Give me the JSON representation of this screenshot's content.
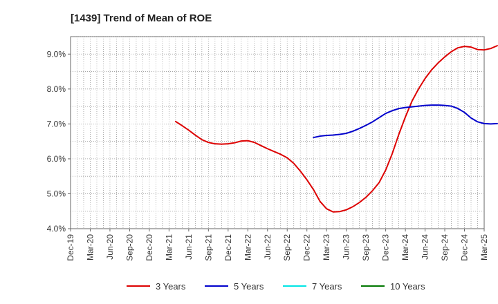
{
  "chart_data": {
    "type": "line",
    "title": "[1439]  Trend of Mean of ROE",
    "xlabel": "",
    "ylabel": "",
    "x_tick_labels": [
      "Dec-19",
      "Mar-20",
      "Jun-20",
      "Sep-20",
      "Dec-20",
      "Mar-21",
      "Jun-21",
      "Sep-21",
      "Dec-21",
      "Mar-22",
      "Jun-22",
      "Sep-22",
      "Dec-22",
      "Mar-23",
      "Jun-23",
      "Sep-23",
      "Dec-23",
      "Mar-24",
      "Jun-24",
      "Sep-24",
      "Dec-24",
      "Mar-25"
    ],
    "y_tick_labels": [
      "4.0%",
      "5.0%",
      "6.0%",
      "7.0%",
      "8.0%",
      "9.0%"
    ],
    "y_ticks": [
      4.0,
      5.0,
      6.0,
      7.0,
      8.0,
      9.0
    ],
    "ylim": [
      4.0,
      9.5
    ],
    "grid": true,
    "legend_position": "bottom",
    "series": [
      {
        "name": "3 Years",
        "color": "#dd0000",
        "values": [
          null,
          null,
          null,
          null,
          null,
          null,
          null,
          null,
          null,
          null,
          null,
          null,
          null,
          null,
          null,
          null,
          7.07,
          6.95,
          6.82,
          6.68,
          6.55,
          6.47,
          6.43,
          6.42,
          6.43,
          6.46,
          6.51,
          6.52,
          6.47,
          6.38,
          6.29,
          6.21,
          6.13,
          6.03,
          5.87,
          5.65,
          5.4,
          5.12,
          4.78,
          4.57,
          4.48,
          4.49,
          4.54,
          4.63,
          4.75,
          4.9,
          5.09,
          5.32,
          5.68,
          6.15,
          6.7,
          7.2,
          7.65,
          8.0,
          8.3,
          8.55,
          8.75,
          8.92,
          9.07,
          9.18,
          9.22,
          9.2,
          9.13,
          9.12,
          9.16,
          9.24
        ]
      },
      {
        "name": "5 Years",
        "color": "#0000cc",
        "values": [
          null,
          null,
          null,
          null,
          null,
          null,
          null,
          null,
          null,
          null,
          null,
          null,
          null,
          null,
          null,
          null,
          null,
          null,
          null,
          null,
          null,
          null,
          null,
          null,
          null,
          null,
          null,
          null,
          null,
          null,
          null,
          null,
          null,
          null,
          null,
          null,
          null,
          null,
          null,
          null,
          null,
          null,
          null,
          null,
          null,
          null,
          null,
          null,
          null,
          null,
          null,
          null,
          null,
          null,
          null,
          null,
          null,
          null,
          null,
          null,
          null,
          null,
          null,
          null,
          null,
          null,
          null,
          null,
          null,
          null,
          null,
          null,
          null,
          null,
          null,
          null,
          null,
          null,
          null,
          null,
          null,
          null,
          null,
          null,
          null,
          null,
          null,
          null,
          null,
          null,
          null,
          null,
          null,
          null,
          null,
          null,
          null,
          null,
          null,
          null
        ]
      },
      {
        "name": "7 Years",
        "color": "#00e5e5",
        "values": []
      },
      {
        "name": "10 Years",
        "color": "#007700",
        "values": []
      }
    ]
  }
}
